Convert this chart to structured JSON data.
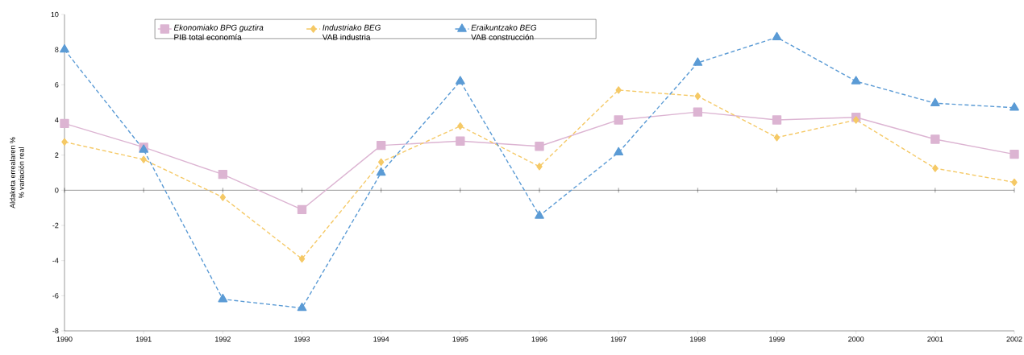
{
  "chart_data": {
    "type": "line",
    "ylabel": "Aldaketa errealaren % % variación real",
    "x": [
      1990,
      1991,
      1992,
      1993,
      1994,
      1995,
      1996,
      1997,
      1998,
      1999,
      2000,
      2001,
      2002
    ],
    "xlim": [
      1990,
      2002
    ],
    "xticks": [
      1990,
      1991,
      1992,
      1993,
      1994,
      1995,
      1996,
      1997,
      1998,
      1999,
      2000,
      2001,
      2002
    ],
    "ylim": [
      -8,
      10
    ],
    "yticks": [
      -8,
      -6,
      -4,
      -2,
      0,
      2,
      4,
      6,
      8,
      10
    ],
    "series": [
      {
        "name": "*Ekonomiako BPG guztira* PIB total economía",
        "color": "#dcb4d2",
        "marker": "square",
        "line_style": "solid",
        "values": [
          3.8,
          2.45,
          0.9,
          -1.1,
          2.55,
          2.8,
          2.5,
          4.0,
          4.45,
          4.0,
          4.15,
          2.9,
          2.05
        ]
      },
      {
        "name": "*Industriako BEG* VAB industria",
        "color": "#f5c966",
        "marker": "diamond",
        "line_style": "dashed",
        "values": [
          2.75,
          1.75,
          -0.4,
          -3.9,
          1.6,
          3.65,
          1.35,
          5.7,
          5.35,
          3.0,
          4.0,
          1.25,
          0.45
        ]
      },
      {
        "name": "*Eraikuntzako BEG* VAB construcción",
        "color": "#5b9bd5",
        "marker": "triangle",
        "line_style": "dashed",
        "values": [
          8.0,
          2.3,
          -6.2,
          -6.7,
          1.0,
          6.2,
          -1.45,
          2.15,
          7.25,
          8.7,
          6.2,
          4.95,
          4.7
        ]
      }
    ],
    "ref_lines": [
      {
        "axis": "y",
        "value": 0,
        "color": "#000000"
      }
    ],
    "grid": false,
    "legend": "top"
  }
}
